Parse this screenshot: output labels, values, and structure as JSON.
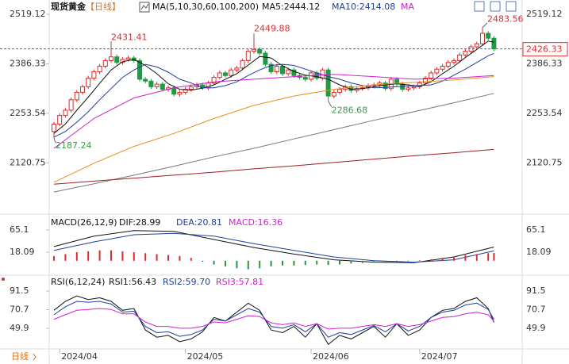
{
  "chart_data": [
    {
      "type": "candlestick",
      "title": "现货黄金",
      "period": "【日线】",
      "indicator": "MA(5,10,30,60,100,200)",
      "categories": [
        null,
        "2024/04",
        null,
        null,
        null,
        null,
        null,
        null,
        null,
        null,
        null,
        null,
        null,
        null,
        null,
        null,
        null,
        null,
        null,
        null,
        null,
        null,
        null,
        "2024/05",
        null,
        null,
        null,
        null,
        null,
        null,
        null,
        null,
        null,
        null,
        null,
        null,
        null,
        null,
        null,
        null,
        null,
        null,
        null,
        null,
        null,
        "2024/06",
        null,
        null,
        null,
        null,
        null,
        null,
        null,
        null,
        null,
        null,
        null,
        null,
        null,
        null,
        null,
        null,
        null,
        null,
        "2024/07",
        null,
        null,
        null,
        null,
        null,
        null,
        null,
        null,
        null,
        null,
        null,
        null,
        null
      ],
      "open": [
        2205,
        2225,
        2248,
        2262,
        2290,
        2310,
        2325,
        2348,
        2365,
        2380,
        2395,
        2405,
        2390,
        2398,
        2402,
        2395,
        2345,
        2340,
        2325,
        2332,
        2318,
        2322,
        2305,
        2310,
        2318,
        2325,
        2330,
        2322,
        2335,
        2350,
        2362,
        2355,
        2370,
        2375,
        2395,
        2420,
        2425,
        2415,
        2385,
        2365,
        2380,
        2360,
        2370,
        2355,
        2350,
        2345,
        2362,
        2348,
        2370,
        2300,
        2310,
        2318,
        2325,
        2315,
        2320,
        2322,
        2328,
        2330,
        2335,
        2320,
        2345,
        2332,
        2318,
        2322,
        2325,
        2335,
        2348,
        2362,
        2372,
        2380,
        2390,
        2395,
        2410,
        2420,
        2432,
        2440,
        2468,
        2455
      ],
      "high": [
        2231,
        2254,
        2268,
        2296,
        2316,
        2331,
        2354,
        2371,
        2386,
        2401,
        2431.41,
        2411,
        2404,
        2408,
        2408,
        2401,
        2351,
        2346,
        2338,
        2338,
        2328,
        2328,
        2316,
        2324,
        2331,
        2336,
        2336,
        2341,
        2356,
        2368,
        2368,
        2376,
        2381,
        2401,
        2426,
        2449.88,
        2431,
        2421,
        2391,
        2386,
        2386,
        2376,
        2376,
        2361,
        2356,
        2368,
        2368,
        2376,
        2376,
        2316,
        2324,
        2331,
        2331,
        2326,
        2328,
        2334,
        2336,
        2341,
        2341,
        2351,
        2351,
        2338,
        2328,
        2331,
        2341,
        2354,
        2368,
        2378,
        2386,
        2396,
        2401,
        2416,
        2426,
        2438,
        2446,
        2483.56,
        2474,
        2461
      ],
      "low": [
        2187.24,
        2219,
        2242,
        2256,
        2284,
        2304,
        2319,
        2342,
        2359,
        2374,
        2389,
        2384,
        2384,
        2392,
        2389,
        2339,
        2334,
        2319,
        2319,
        2312,
        2312,
        2299,
        2299,
        2304,
        2312,
        2319,
        2316,
        2316,
        2329,
        2344,
        2349,
        2349,
        2364,
        2369,
        2389,
        2414,
        2409,
        2379,
        2359,
        2359,
        2354,
        2354,
        2349,
        2344,
        2339,
        2339,
        2342,
        2342,
        2286.68,
        2294,
        2304,
        2312,
        2309,
        2309,
        2314,
        2316,
        2322,
        2324,
        2314,
        2314,
        2326,
        2312,
        2312,
        2316,
        2319,
        2329,
        2342,
        2356,
        2366,
        2374,
        2384,
        2389,
        2404,
        2414,
        2426,
        2434,
        2449,
        2420
      ],
      "close": [
        2225,
        2248,
        2262,
        2290,
        2310,
        2325,
        2348,
        2365,
        2380,
        2395,
        2405,
        2390,
        2398,
        2402,
        2395,
        2345,
        2340,
        2325,
        2332,
        2318,
        2322,
        2305,
        2310,
        2318,
        2325,
        2330,
        2322,
        2335,
        2350,
        2362,
        2355,
        2370,
        2375,
        2395,
        2420,
        2425,
        2415,
        2385,
        2365,
        2380,
        2360,
        2370,
        2355,
        2350,
        2345,
        2362,
        2348,
        2370,
        2300,
        2310,
        2318,
        2325,
        2315,
        2320,
        2322,
        2328,
        2330,
        2335,
        2320,
        2345,
        2332,
        2318,
        2322,
        2325,
        2335,
        2348,
        2362,
        2372,
        2380,
        2390,
        2395,
        2410,
        2420,
        2432,
        2440,
        2468,
        2455,
        2426.33
      ],
      "up_color": "#e02a2a",
      "down_color": "#1f9a45",
      "ylim": [
        1987.87,
        2536.12
      ],
      "yticks": [
        2120.75,
        2253.54,
        2386.33,
        2519.12
      ],
      "series": [
        {
          "name": "MA5:2444.12",
          "color": "#111111",
          "x": [
            0,
            2,
            4,
            6,
            8,
            10,
            12,
            14,
            16,
            18,
            20,
            22,
            24,
            26,
            28,
            30,
            32,
            34,
            36,
            38,
            40,
            42,
            44,
            46,
            48,
            50,
            52,
            54,
            56,
            58,
            60,
            62,
            64,
            66,
            68,
            70,
            72,
            74,
            76,
            77
          ],
          "values": [
            2200,
            2225,
            2262,
            2297,
            2334,
            2370,
            2392,
            2398,
            2382,
            2360,
            2333,
            2318,
            2316,
            2321,
            2330,
            2345,
            2360,
            2383,
            2406,
            2402,
            2381,
            2366,
            2356,
            2352,
            2345,
            2330,
            2318,
            2320,
            2325,
            2330,
            2333,
            2330,
            2326,
            2338,
            2360,
            2380,
            2403,
            2425,
            2447,
            2444.12
          ]
        },
        {
          "name": "MA10:2414.08",
          "color": "#1d3f9e",
          "x": [
            0,
            2,
            4,
            6,
            8,
            10,
            12,
            14,
            16,
            18,
            20,
            22,
            24,
            26,
            28,
            30,
            32,
            34,
            36,
            38,
            40,
            42,
            44,
            46,
            48,
            50,
            52,
            54,
            56,
            58,
            60,
            62,
            64,
            66,
            68,
            70,
            72,
            74,
            76,
            77
          ],
          "values": [
            2190,
            2205,
            2230,
            2258,
            2290,
            2320,
            2350,
            2370,
            2385,
            2378,
            2364,
            2345,
            2335,
            2322,
            2322,
            2328,
            2338,
            2355,
            2370,
            2382,
            2385,
            2382,
            2372,
            2362,
            2352,
            2345,
            2335,
            2328,
            2322,
            2323,
            2325,
            2327,
            2328,
            2330,
            2340,
            2356,
            2372,
            2390,
            2408,
            2414.08
          ]
        },
        {
          "name": "MA",
          "color": "#d020d0",
          "x": [
            0,
            7,
            14,
            21,
            28,
            35,
            42,
            49,
            56,
            63,
            70,
            77
          ],
          "values": [
            2160,
            2240,
            2295,
            2322,
            2338,
            2345,
            2352,
            2358,
            2352,
            2345,
            2348,
            2355
          ]
        },
        {
          "color": "#e8901a",
          "x": [
            0,
            7,
            14,
            21,
            28,
            35,
            42,
            49,
            56,
            63,
            70,
            77
          ],
          "values": [
            2069,
            2120,
            2165,
            2200,
            2240,
            2275,
            2300,
            2318,
            2330,
            2337,
            2343,
            2352
          ]
        },
        {
          "color": "#777777",
          "x": [
            0,
            7,
            14,
            21,
            28,
            35,
            42,
            49,
            56,
            63,
            70,
            77
          ],
          "values": [
            2043,
            2065,
            2088,
            2112,
            2137,
            2160,
            2185,
            2210,
            2235,
            2258,
            2282,
            2307
          ]
        },
        {
          "color": "#a02020",
          "x": [
            0,
            7,
            14,
            21,
            28,
            35,
            42,
            49,
            56,
            63,
            70,
            77
          ],
          "values": [
            2064,
            2072,
            2080,
            2088,
            2096,
            2105,
            2113,
            2122,
            2131,
            2140,
            2148,
            2157
          ]
        }
      ]
    },
    {
      "type": "macd",
      "title": "MACD(26,12,9)",
      "ylim": [
        -27.24,
        95.32
      ],
      "yticks": [
        18.09,
        65.1
      ],
      "series": [
        {
          "name": "DIF:28.99",
          "color": "#111111",
          "x": [
            0,
            7,
            14,
            21,
            28,
            35,
            42,
            49,
            56,
            63,
            70,
            77
          ],
          "values": [
            30,
            52,
            64,
            62,
            45,
            28,
            14,
            2,
            -3,
            -4,
            8,
            28.99
          ]
        },
        {
          "name": "DEA:20.81",
          "color": "#1d3f9e",
          "x": [
            0,
            7,
            14,
            21,
            28,
            35,
            42,
            49,
            56,
            63,
            70,
            77
          ],
          "values": [
            22,
            40,
            55,
            58,
            52,
            36,
            22,
            8,
            0,
            -3,
            2,
            20.81
          ]
        },
        {
          "name": "MACD:16.36",
          "type": "bar",
          "color": "#d020d0",
          "up_color": "#e02a2a",
          "down_color": "#1f9a45",
          "x": [
            0,
            2,
            4,
            6,
            8,
            10,
            12,
            14,
            16,
            18,
            20,
            22,
            24,
            26,
            28,
            30,
            32,
            34,
            36,
            38,
            40,
            42,
            44,
            46,
            48,
            50,
            52,
            54,
            56,
            58,
            60,
            62,
            64,
            66,
            68,
            70,
            72,
            74,
            76,
            77
          ],
          "values": [
            10,
            14,
            18,
            20,
            22,
            22,
            20,
            18,
            16,
            14,
            12,
            10,
            6,
            -2,
            -8,
            -12,
            -16,
            -18,
            -16,
            -12,
            -10,
            -10,
            -9,
            -8,
            -9,
            -8,
            -6,
            -5,
            -4,
            -3,
            -2,
            -1,
            1,
            3,
            6,
            9,
            12,
            14,
            16,
            16.36
          ]
        }
      ]
    },
    {
      "type": "rsi",
      "title": "RSI(6,12,24)",
      "ylim": [
        26.89,
        106.55
      ],
      "yticks": [
        49.9,
        70.7,
        91.5
      ],
      "series": [
        {
          "name": "RSI1:56.43",
          "color": "#111111",
          "x": [
            0,
            2,
            4,
            6,
            8,
            10,
            12,
            14,
            16,
            18,
            20,
            22,
            24,
            26,
            28,
            30,
            32,
            34,
            36,
            38,
            40,
            42,
            44,
            46,
            48,
            50,
            52,
            54,
            56,
            58,
            60,
            62,
            64,
            66,
            68,
            70,
            72,
            74,
            76,
            77
          ],
          "values": [
            70,
            80,
            86,
            82,
            84,
            80,
            70,
            72,
            48,
            40,
            42,
            35,
            38,
            46,
            62,
            58,
            68,
            78,
            70,
            48,
            45,
            52,
            40,
            55,
            32,
            42,
            38,
            45,
            52,
            40,
            55,
            42,
            48,
            62,
            70,
            72,
            80,
            84,
            72,
            56.43
          ]
        },
        {
          "name": "RSI2:59.70",
          "color": "#1d3f9e",
          "x": [
            0,
            2,
            4,
            6,
            8,
            10,
            12,
            14,
            16,
            18,
            20,
            22,
            24,
            26,
            28,
            30,
            32,
            34,
            36,
            38,
            40,
            42,
            44,
            46,
            48,
            50,
            52,
            54,
            56,
            58,
            60,
            62,
            64,
            66,
            68,
            70,
            72,
            74,
            76,
            77
          ],
          "values": [
            65,
            74,
            80,
            79,
            80,
            77,
            68,
            69,
            52,
            45,
            46,
            41,
            43,
            48,
            60,
            58,
            65,
            72,
            68,
            52,
            50,
            54,
            46,
            55,
            40,
            45,
            43,
            48,
            53,
            46,
            55,
            47,
            52,
            62,
            68,
            70,
            76,
            78,
            71,
            59.7
          ]
        },
        {
          "name": "RSI3:57.81",
          "color": "#d020d0",
          "x": [
            0,
            2,
            4,
            6,
            8,
            10,
            12,
            14,
            16,
            18,
            20,
            22,
            24,
            26,
            28,
            30,
            32,
            34,
            36,
            38,
            40,
            42,
            44,
            46,
            48,
            50,
            52,
            54,
            56,
            58,
            60,
            62,
            64,
            66,
            68,
            70,
            72,
            74,
            76,
            77
          ],
          "values": [
            60,
            65,
            70,
            71,
            72,
            71,
            66,
            66,
            57,
            52,
            52,
            50,
            50,
            52,
            57,
            56,
            60,
            64,
            63,
            56,
            54,
            56,
            52,
            55,
            49,
            50,
            50,
            52,
            54,
            52,
            55,
            52,
            54,
            58,
            62,
            63,
            66,
            68,
            65,
            57.81
          ]
        }
      ]
    }
  ],
  "period_tab": "日线"
}
